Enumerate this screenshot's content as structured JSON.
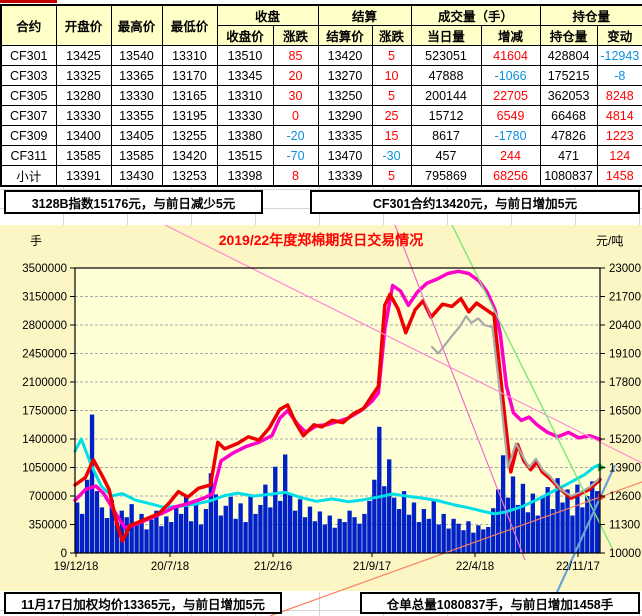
{
  "table": {
    "group_headers": [
      {
        "label": "合约",
        "span": 1,
        "merged": true
      },
      {
        "label": "开盘价",
        "span": 1,
        "merged": true
      },
      {
        "label": "最高价",
        "span": 1,
        "merged": true
      },
      {
        "label": "最低价",
        "span": 1,
        "merged": true
      },
      {
        "label": "收盘",
        "span": 2
      },
      {
        "label": "结算",
        "span": 2
      },
      {
        "label": "成交量（手）",
        "span": 2
      },
      {
        "label": "持仓量",
        "span": 2
      }
    ],
    "sub_headers": [
      "收盘价",
      "涨跌",
      "结算价",
      "涨跌",
      "当日量",
      "增减",
      "持仓量",
      "变动"
    ],
    "rows": [
      [
        "CF301",
        "13425",
        "13540",
        "13310",
        "13510",
        "85",
        "13420",
        "5",
        "523051",
        "41604",
        "428804",
        "-12943"
      ],
      [
        "CF303",
        "13325",
        "13365",
        "13170",
        "13345",
        "20",
        "13270",
        "10",
        "47888",
        "-1066",
        "175215",
        "-8"
      ],
      [
        "CF305",
        "13280",
        "13330",
        "13165",
        "13310",
        "30",
        "13250",
        "5",
        "200144",
        "22705",
        "362053",
        "8248"
      ],
      [
        "CF307",
        "13330",
        "13355",
        "13195",
        "13330",
        "0",
        "13290",
        "25",
        "15712",
        "6549",
        "66468",
        "4814"
      ],
      [
        "CF309",
        "13400",
        "13405",
        "13255",
        "13380",
        "-20",
        "13335",
        "15",
        "8617",
        "-1780",
        "47826",
        "1223"
      ],
      [
        "CF311",
        "13585",
        "13585",
        "13420",
        "13515",
        "-70",
        "13470",
        "-30",
        "457",
        "244",
        "471",
        "124"
      ],
      [
        "小计",
        "13391",
        "13430",
        "13253",
        "13398",
        "8",
        "13339",
        "5",
        "795869",
        "68256",
        "1080837",
        "1458"
      ]
    ],
    "colors": {
      "positive_change": "#fe0000",
      "negative_change": "#0a90e0",
      "header_bg": "#ffffc8"
    }
  },
  "info_bars": {
    "top_left": "3128B指数15176元，与前日减少5元",
    "top_right": "CF301合约13420元，与前日增加5元",
    "bottom_left": "11月17日加权均价13365元，与前日增加5元",
    "bottom_right": "仓单总量1080837手，与前日增加1458手"
  },
  "chart_data": {
    "type": "mixed bar+line",
    "title": "2019/22年度郑棉期货日交易情况",
    "left_axis": {
      "unit_label": "手",
      "min": 0,
      "max": 3500000,
      "tick_step": 350000
    },
    "right_axis": {
      "unit_label": "元/吨",
      "min": 10000,
      "max": 23000,
      "tick_step": 1300
    },
    "x_labels": [
      "19/12/18",
      "20/7/18",
      "21/2/16",
      "21/9/17",
      "22/4/18",
      "22/11/17"
    ],
    "grid": "horizontal dashed",
    "background_color": "#fcf6c5",
    "plot_color": "#ffffd6",
    "series": {
      "volume_bars": {
        "axis": "left",
        "color": "#0020c8",
        "unit": "thousand lots",
        "values": [
          620,
          480,
          900,
          1700,
          760,
          560,
          430,
          650,
          380,
          520,
          440,
          600,
          350,
          480,
          290,
          410,
          520,
          330,
          450,
          380,
          560,
          480,
          700,
          390,
          620,
          350,
          540,
          980,
          720,
          460,
          580,
          690,
          420,
          610,
          380,
          720,
          480,
          590,
          840,
          560,
          1060,
          640,
          1210,
          730,
          520,
          660,
          440,
          570,
          390,
          510,
          350,
          460,
          310,
          420,
          380,
          520,
          440,
          360,
          480,
          640,
          900,
          1550,
          820,
          1150,
          680,
          540,
          760,
          470,
          620,
          380,
          540,
          420,
          660,
          350,
          480,
          300,
          420,
          360,
          280,
          390,
          250,
          340,
          290,
          320,
          550,
          780,
          1200,
          680,
          940,
          590,
          850,
          500,
          730,
          460,
          680,
          810,
          540,
          920,
          620,
          780,
          460,
          840,
          560,
          700,
          880,
          760
        ]
      },
      "cyan_line": {
        "axis": "left",
        "color": "#00dfe8",
        "stroke": 3,
        "points": [
          [
            0,
            1250000
          ],
          [
            0.012,
            1400000
          ],
          [
            0.03,
            1090000
          ],
          [
            0.05,
            820000
          ],
          [
            0.07,
            700000
          ],
          [
            0.09,
            730000
          ],
          [
            0.115,
            650000
          ],
          [
            0.14,
            610000
          ],
          [
            0.17,
            560000
          ],
          [
            0.2,
            575000
          ],
          [
            0.23,
            600000
          ],
          [
            0.26,
            645000
          ],
          [
            0.285,
            705000
          ],
          [
            0.31,
            735000
          ],
          [
            0.34,
            700000
          ],
          [
            0.37,
            720000
          ],
          [
            0.4,
            745000
          ],
          [
            0.43,
            680000
          ],
          [
            0.46,
            635000
          ],
          [
            0.49,
            665000
          ],
          [
            0.52,
            630000
          ],
          [
            0.55,
            655000
          ],
          [
            0.58,
            690000
          ],
          [
            0.605,
            725000
          ],
          [
            0.63,
            700000
          ],
          [
            0.66,
            675000
          ],
          [
            0.69,
            645000
          ],
          [
            0.72,
            595000
          ],
          [
            0.75,
            555000
          ],
          [
            0.775,
            515000
          ],
          [
            0.8,
            480000
          ],
          [
            0.82,
            505000
          ],
          [
            0.85,
            565000
          ],
          [
            0.88,
            655000
          ],
          [
            0.91,
            755000
          ],
          [
            0.94,
            855000
          ],
          [
            0.97,
            960000
          ],
          [
            0.99,
            1060000
          ],
          [
            1,
            1085000
          ]
        ]
      },
      "magenta_line": {
        "axis": "right",
        "color": "#ff00c8",
        "stroke": 3.5,
        "points": [
          [
            0,
            12400
          ],
          [
            0.02,
            12900
          ],
          [
            0.04,
            13050
          ],
          [
            0.055,
            12700
          ],
          [
            0.075,
            11900
          ],
          [
            0.095,
            11150
          ],
          [
            0.115,
            11300
          ],
          [
            0.14,
            11550
          ],
          [
            0.165,
            11800
          ],
          [
            0.19,
            12100
          ],
          [
            0.215,
            12250
          ],
          [
            0.245,
            12500
          ],
          [
            0.262,
            12700
          ],
          [
            0.278,
            14200
          ],
          [
            0.3,
            14550
          ],
          [
            0.325,
            14850
          ],
          [
            0.35,
            15050
          ],
          [
            0.375,
            15350
          ],
          [
            0.39,
            16150
          ],
          [
            0.405,
            16500
          ],
          [
            0.425,
            15850
          ],
          [
            0.44,
            15500
          ],
          [
            0.46,
            15800
          ],
          [
            0.48,
            15850
          ],
          [
            0.5,
            16000
          ],
          [
            0.52,
            16150
          ],
          [
            0.545,
            16500
          ],
          [
            0.565,
            16900
          ],
          [
            0.578,
            17300
          ],
          [
            0.59,
            20200
          ],
          [
            0.605,
            22200
          ],
          [
            0.62,
            21950
          ],
          [
            0.635,
            21300
          ],
          [
            0.652,
            21900
          ],
          [
            0.67,
            22300
          ],
          [
            0.69,
            22500
          ],
          [
            0.71,
            22750
          ],
          [
            0.73,
            22850
          ],
          [
            0.75,
            22750
          ],
          [
            0.77,
            22400
          ],
          [
            0.785,
            21900
          ],
          [
            0.8,
            21100
          ],
          [
            0.81,
            20000
          ],
          [
            0.822,
            17600
          ],
          [
            0.835,
            16400
          ],
          [
            0.85,
            16050
          ],
          [
            0.865,
            16200
          ],
          [
            0.88,
            15850
          ],
          [
            0.9,
            15500
          ],
          [
            0.92,
            15300
          ],
          [
            0.94,
            15500
          ],
          [
            0.96,
            15250
          ],
          [
            0.98,
            15350
          ],
          [
            1,
            15180
          ]
        ]
      },
      "red_line": {
        "axis": "right",
        "color": "#ee0000",
        "stroke": 3.5,
        "points": [
          [
            0,
            13100
          ],
          [
            0.02,
            13450
          ],
          [
            0.035,
            14250
          ],
          [
            0.05,
            13600
          ],
          [
            0.065,
            12900
          ],
          [
            0.08,
            11300
          ],
          [
            0.09,
            10550
          ],
          [
            0.105,
            11250
          ],
          [
            0.13,
            11500
          ],
          [
            0.16,
            11800
          ],
          [
            0.18,
            12300
          ],
          [
            0.197,
            12800
          ],
          [
            0.215,
            12550
          ],
          [
            0.235,
            12950
          ],
          [
            0.258,
            13100
          ],
          [
            0.272,
            15050
          ],
          [
            0.285,
            14750
          ],
          [
            0.31,
            15000
          ],
          [
            0.33,
            15300
          ],
          [
            0.35,
            15150
          ],
          [
            0.37,
            15700
          ],
          [
            0.39,
            16550
          ],
          [
            0.405,
            16750
          ],
          [
            0.42,
            15950
          ],
          [
            0.435,
            15350
          ],
          [
            0.455,
            15850
          ],
          [
            0.47,
            15750
          ],
          [
            0.49,
            16050
          ],
          [
            0.51,
            15950
          ],
          [
            0.53,
            16350
          ],
          [
            0.55,
            16600
          ],
          [
            0.565,
            17150
          ],
          [
            0.578,
            17600
          ],
          [
            0.59,
            21300
          ],
          [
            0.6,
            21800
          ],
          [
            0.615,
            21150
          ],
          [
            0.63,
            20050
          ],
          [
            0.648,
            21100
          ],
          [
            0.663,
            21500
          ],
          [
            0.678,
            20750
          ],
          [
            0.7,
            21350
          ],
          [
            0.718,
            21250
          ],
          [
            0.735,
            21600
          ],
          [
            0.75,
            21000
          ],
          [
            0.765,
            21400
          ],
          [
            0.78,
            21150
          ],
          [
            0.798,
            20850
          ],
          [
            0.815,
            17000
          ],
          [
            0.83,
            13700
          ],
          [
            0.843,
            14950
          ],
          [
            0.855,
            14200
          ],
          [
            0.868,
            13800
          ],
          [
            0.88,
            14150
          ],
          [
            0.89,
            13700
          ],
          [
            0.905,
            13400
          ],
          [
            0.925,
            12900
          ],
          [
            0.945,
            12500
          ],
          [
            0.962,
            12700
          ],
          [
            0.98,
            12900
          ],
          [
            1,
            13350
          ]
        ]
      },
      "gray_line": {
        "axis": "right",
        "color": "#a8a8a8",
        "stroke": 2.2,
        "points": [
          [
            0.68,
            19400
          ],
          [
            0.692,
            19100
          ],
          [
            0.705,
            19500
          ],
          [
            0.718,
            19900
          ],
          [
            0.732,
            20300
          ],
          [
            0.745,
            20800
          ],
          [
            0.755,
            20500
          ],
          [
            0.768,
            20700
          ],
          [
            0.78,
            20400
          ],
          [
            0.795,
            20300
          ],
          [
            0.81,
            17200
          ],
          [
            0.825,
            13900
          ],
          [
            0.84,
            15000
          ],
          [
            0.853,
            14400
          ],
          [
            0.865,
            13900
          ],
          [
            0.878,
            14300
          ],
          [
            0.89,
            13800
          ],
          [
            0.905,
            13500
          ],
          [
            0.925,
            12900
          ],
          [
            0.945,
            12600
          ],
          [
            0.965,
            12800
          ],
          [
            0.98,
            13000
          ],
          [
            1,
            13420
          ]
        ]
      }
    },
    "trend_lines": [
      {
        "name": "pink-trend",
        "color": "#ff8ad2",
        "width": 1.2,
        "coords": [
          165,
          0,
          642,
          238
        ]
      },
      {
        "name": "magenta-steep-trend",
        "color": "#f070c8",
        "width": 1.2,
        "coords": [
          395,
          0,
          525,
          335
        ]
      },
      {
        "name": "green-trend",
        "color": "#7ae87a",
        "width": 1.4,
        "coords": [
          452,
          0,
          612,
          323
        ]
      },
      {
        "name": "salmon-trend",
        "color": "#f88060",
        "width": 1.2,
        "coords": [
          270,
          391,
          642,
          257
        ]
      },
      {
        "name": "blue-trend",
        "color": "#6aa2dc",
        "width": 2.2,
        "coords": [
          615,
          240,
          548,
          387
        ]
      }
    ],
    "end_markers": [
      {
        "color": "#22b14c",
        "value_right_axis": 13900
      },
      {
        "color": "#e03030",
        "value_right_axis": 12550
      }
    ]
  }
}
